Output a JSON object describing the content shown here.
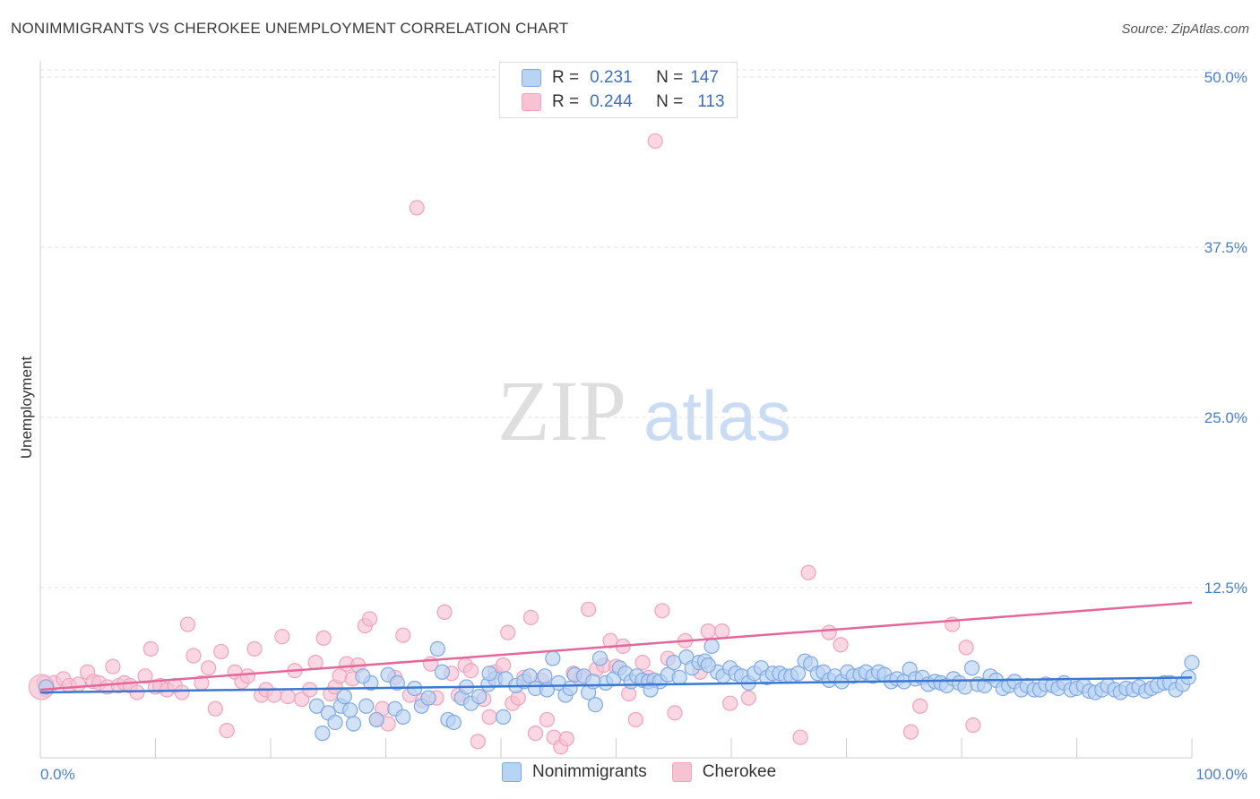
{
  "title": "NONIMMIGRANTS VS CHEROKEE UNEMPLOYMENT CORRELATION CHART",
  "source": "Source: ZipAtlas.com",
  "watermark": {
    "zip": "ZIP",
    "atlas": "atlas"
  },
  "legend": {
    "rows": [
      {
        "r_label": "R =",
        "r_value": "0.231",
        "n_label": "N =",
        "n_value": "147"
      },
      {
        "r_label": "R =",
        "r_value": "0.244",
        "n_label": "N =",
        "n_value": "113"
      }
    ]
  },
  "bottom_legend": [
    "Nonimmigrants",
    "Cherokee"
  ],
  "colors": {
    "blue_fill": "#b9d3f3",
    "blue_stroke": "#7fa9e3",
    "blue_line": "#3a78d4",
    "pink_fill": "#f7c2d2",
    "pink_stroke": "#eea3bb",
    "pink_line": "#e4679a",
    "tick_label": "#4a7fc8",
    "grid": "#e2e2e2"
  },
  "chart_data": {
    "type": "scatter",
    "title": "NONIMMIGRANTS VS CHEROKEE UNEMPLOYMENT CORRELATION CHART",
    "xlabel": "",
    "ylabel": "Unemployment",
    "xlim": [
      0,
      100
    ],
    "ylim": [
      0,
      50
    ],
    "y_ticks": [
      12.5,
      25.0,
      37.5,
      50.0
    ],
    "y_tick_labels": [
      "12.5%",
      "25.0%",
      "37.5%",
      "50.0%"
    ],
    "x_tick_labels": [
      "0.0%",
      "100.0%"
    ],
    "grid": "horizontal dashed",
    "series": [
      {
        "name": "Nonimmigrants",
        "trend": [
          [
            0,
            4.8
          ],
          [
            100,
            5.9
          ]
        ],
        "points": [
          [
            0.5,
            5.2
          ],
          [
            24,
            3.8
          ],
          [
            24.5,
            1.8
          ],
          [
            25,
            3.3
          ],
          [
            25.6,
            2.6
          ],
          [
            26.1,
            3.8
          ],
          [
            26.4,
            4.5
          ],
          [
            26.9,
            3.5
          ],
          [
            27.2,
            2.5
          ],
          [
            28.3,
            3.8
          ],
          [
            28.7,
            5.5
          ],
          [
            29.2,
            2.8
          ],
          [
            30.2,
            6.1
          ],
          [
            30.8,
            3.6
          ],
          [
            31.5,
            3.0
          ],
          [
            32.5,
            5.1
          ],
          [
            33.1,
            3.8
          ],
          [
            33.7,
            4.4
          ],
          [
            34.5,
            8.0
          ],
          [
            34.9,
            6.3
          ],
          [
            35.4,
            2.8
          ],
          [
            35.9,
            2.6
          ],
          [
            36.6,
            4.4
          ],
          [
            37.4,
            4.0
          ],
          [
            38.1,
            4.5
          ],
          [
            38.9,
            5.4
          ],
          [
            39.5,
            5.8
          ],
          [
            40.2,
            3.0
          ],
          [
            40.4,
            5.8
          ],
          [
            41.3,
            5.3
          ],
          [
            42.0,
            5.6
          ],
          [
            42.5,
            6.0
          ],
          [
            43.0,
            5.1
          ],
          [
            43.8,
            6.0
          ],
          [
            44.5,
            7.3
          ],
          [
            45.0,
            5.5
          ],
          [
            45.6,
            4.6
          ],
          [
            46.0,
            5.1
          ],
          [
            46.4,
            6.1
          ],
          [
            47.2,
            6.0
          ],
          [
            47.6,
            4.8
          ],
          [
            48.2,
            3.9
          ],
          [
            48.6,
            7.3
          ],
          [
            49.1,
            5.5
          ],
          [
            49.8,
            5.8
          ],
          [
            50.3,
            6.6
          ],
          [
            50.8,
            6.2
          ],
          [
            51.3,
            5.6
          ],
          [
            51.8,
            6.0
          ],
          [
            52.3,
            5.7
          ],
          [
            52.8,
            5.6
          ],
          [
            53.3,
            5.7
          ],
          [
            53.8,
            5.6
          ],
          [
            54.5,
            6.1
          ],
          [
            55.0,
            7.0
          ],
          [
            55.5,
            5.9
          ],
          [
            56.1,
            7.4
          ],
          [
            56.6,
            6.6
          ],
          [
            57.2,
            7.0
          ],
          [
            57.7,
            7.1
          ],
          [
            58.3,
            8.2
          ],
          [
            58.8,
            6.3
          ],
          [
            59.3,
            6.0
          ],
          [
            59.9,
            6.6
          ],
          [
            60.4,
            6.2
          ],
          [
            60.9,
            6.0
          ],
          [
            61.5,
            5.5
          ],
          [
            62.0,
            6.2
          ],
          [
            62.6,
            6.6
          ],
          [
            63.1,
            5.9
          ],
          [
            63.6,
            6.2
          ],
          [
            64.2,
            6.2
          ],
          [
            64.7,
            6.0
          ],
          [
            65.2,
            6.0
          ],
          [
            65.8,
            6.2
          ],
          [
            66.4,
            7.1
          ],
          [
            66.9,
            6.9
          ],
          [
            67.5,
            6.2
          ],
          [
            68.0,
            6.3
          ],
          [
            68.5,
            5.7
          ],
          [
            69.0,
            6.0
          ],
          [
            69.6,
            5.6
          ],
          [
            70.1,
            6.3
          ],
          [
            70.6,
            6.0
          ],
          [
            71.2,
            6.1
          ],
          [
            71.7,
            6.3
          ],
          [
            72.3,
            6.0
          ],
          [
            72.8,
            6.3
          ],
          [
            73.3,
            6.1
          ],
          [
            73.9,
            5.6
          ],
          [
            74.4,
            5.8
          ],
          [
            75.0,
            5.6
          ],
          [
            75.5,
            6.5
          ],
          [
            76.0,
            5.8
          ],
          [
            76.6,
            5.9
          ],
          [
            77.1,
            5.4
          ],
          [
            77.7,
            5.6
          ],
          [
            78.2,
            5.5
          ],
          [
            78.7,
            5.3
          ],
          [
            79.3,
            5.8
          ],
          [
            79.8,
            5.5
          ],
          [
            80.3,
            5.2
          ],
          [
            80.9,
            6.6
          ],
          [
            81.4,
            5.4
          ],
          [
            82.0,
            5.3
          ],
          [
            82.5,
            6.0
          ],
          [
            83.0,
            5.7
          ],
          [
            83.6,
            5.1
          ],
          [
            84.1,
            5.3
          ],
          [
            84.6,
            5.6
          ],
          [
            85.2,
            5.0
          ],
          [
            85.7,
            5.3
          ],
          [
            86.3,
            5.0
          ],
          [
            86.8,
            5.0
          ],
          [
            87.3,
            5.4
          ],
          [
            87.9,
            5.3
          ],
          [
            88.4,
            5.1
          ],
          [
            88.9,
            5.5
          ],
          [
            89.5,
            5.0
          ],
          [
            90.0,
            5.1
          ],
          [
            90.6,
            5.3
          ],
          [
            91.1,
            4.9
          ],
          [
            91.6,
            4.8
          ],
          [
            92.2,
            5.0
          ],
          [
            92.7,
            5.3
          ],
          [
            93.3,
            5.0
          ],
          [
            93.8,
            4.8
          ],
          [
            94.3,
            5.1
          ],
          [
            94.9,
            5.0
          ],
          [
            95.4,
            5.2
          ],
          [
            96.0,
            4.9
          ],
          [
            96.5,
            5.1
          ],
          [
            97.0,
            5.3
          ],
          [
            97.6,
            5.5
          ],
          [
            98.1,
            5.5
          ],
          [
            98.6,
            5.0
          ],
          [
            99.2,
            5.4
          ],
          [
            99.7,
            5.9
          ],
          [
            100.0,
            7.0
          ],
          [
            28.0,
            6.0
          ],
          [
            31.0,
            5.5
          ],
          [
            37.0,
            5.2
          ],
          [
            39.0,
            6.2
          ],
          [
            44.0,
            5.0
          ],
          [
            48.0,
            5.6
          ],
          [
            53.0,
            5.0
          ],
          [
            58.0,
            6.8
          ]
        ]
      },
      {
        "name": "Cherokee",
        "trend": [
          [
            0,
            5.0
          ],
          [
            100,
            11.4
          ]
        ],
        "points": [
          [
            0.3,
            5.5
          ],
          [
            0.5,
            5.0
          ],
          [
            1.2,
            5.5
          ],
          [
            2.0,
            5.8
          ],
          [
            2.5,
            5.3
          ],
          [
            3.3,
            5.4
          ],
          [
            4.1,
            6.3
          ],
          [
            4.6,
            5.6
          ],
          [
            5.1,
            5.5
          ],
          [
            5.8,
            5.2
          ],
          [
            6.3,
            6.7
          ],
          [
            6.8,
            5.3
          ],
          [
            7.3,
            5.5
          ],
          [
            7.8,
            5.3
          ],
          [
            8.4,
            4.8
          ],
          [
            9.1,
            6.0
          ],
          [
            9.6,
            8.0
          ],
          [
            10.0,
            5.2
          ],
          [
            10.4,
            5.3
          ],
          [
            11.0,
            5.0
          ],
          [
            11.7,
            5.3
          ],
          [
            12.3,
            4.8
          ],
          [
            12.8,
            9.8
          ],
          [
            13.3,
            7.5
          ],
          [
            14.0,
            5.5
          ],
          [
            14.6,
            6.6
          ],
          [
            15.2,
            3.6
          ],
          [
            15.7,
            7.8
          ],
          [
            16.2,
            2.0
          ],
          [
            16.9,
            6.3
          ],
          [
            17.5,
            5.6
          ],
          [
            18.0,
            6.0
          ],
          [
            18.6,
            8.0
          ],
          [
            19.2,
            4.6
          ],
          [
            19.6,
            5.0
          ],
          [
            20.3,
            4.6
          ],
          [
            21.0,
            8.9
          ],
          [
            21.5,
            4.5
          ],
          [
            22.1,
            6.4
          ],
          [
            22.7,
            4.3
          ],
          [
            23.4,
            5.0
          ],
          [
            23.9,
            7.0
          ],
          [
            24.6,
            8.8
          ],
          [
            25.2,
            4.7
          ],
          [
            25.6,
            5.2
          ],
          [
            26.0,
            6.0
          ],
          [
            26.6,
            6.9
          ],
          [
            27.1,
            5.8
          ],
          [
            27.6,
            6.8
          ],
          [
            28.2,
            9.7
          ],
          [
            28.6,
            10.2
          ],
          [
            29.2,
            2.8
          ],
          [
            29.7,
            3.6
          ],
          [
            30.2,
            2.5
          ],
          [
            30.8,
            5.9
          ],
          [
            31.5,
            9.0
          ],
          [
            32.1,
            4.6
          ],
          [
            32.7,
            40.4
          ],
          [
            33.2,
            4.2
          ],
          [
            33.9,
            6.9
          ],
          [
            34.4,
            4.4
          ],
          [
            35.1,
            10.7
          ],
          [
            35.7,
            6.2
          ],
          [
            36.3,
            4.6
          ],
          [
            36.9,
            6.8
          ],
          [
            37.4,
            6.4
          ],
          [
            38.0,
            1.2
          ],
          [
            38.5,
            4.3
          ],
          [
            39.0,
            3.0
          ],
          [
            39.5,
            6.3
          ],
          [
            40.2,
            6.8
          ],
          [
            40.6,
            9.2
          ],
          [
            41.0,
            4.0
          ],
          [
            41.5,
            4.4
          ],
          [
            42.0,
            5.9
          ],
          [
            42.6,
            10.3
          ],
          [
            43.0,
            1.8
          ],
          [
            43.5,
            5.7
          ],
          [
            44.0,
            2.8
          ],
          [
            44.6,
            1.5
          ],
          [
            45.2,
            0.8
          ],
          [
            45.7,
            1.4
          ],
          [
            46.3,
            6.2
          ],
          [
            47.0,
            5.9
          ],
          [
            47.6,
            10.9
          ],
          [
            48.3,
            6.5
          ],
          [
            48.9,
            6.8
          ],
          [
            49.5,
            8.6
          ],
          [
            50.0,
            6.7
          ],
          [
            50.6,
            8.2
          ],
          [
            51.1,
            4.7
          ],
          [
            51.7,
            2.8
          ],
          [
            52.3,
            7.0
          ],
          [
            52.8,
            5.9
          ],
          [
            53.4,
            45.3
          ],
          [
            54.0,
            10.8
          ],
          [
            54.5,
            7.3
          ],
          [
            55.1,
            3.3
          ],
          [
            56.0,
            8.6
          ],
          [
            57.3,
            6.3
          ],
          [
            58.0,
            9.3
          ],
          [
            59.2,
            9.3
          ],
          [
            59.9,
            4.0
          ],
          [
            61.5,
            4.4
          ],
          [
            66.0,
            1.5
          ],
          [
            66.7,
            13.6
          ],
          [
            68.5,
            9.2
          ],
          [
            69.5,
            8.3
          ],
          [
            75.6,
            1.9
          ],
          [
            76.4,
            3.8
          ],
          [
            79.2,
            9.8
          ],
          [
            80.4,
            8.1
          ],
          [
            81.0,
            2.4
          ]
        ]
      }
    ]
  }
}
